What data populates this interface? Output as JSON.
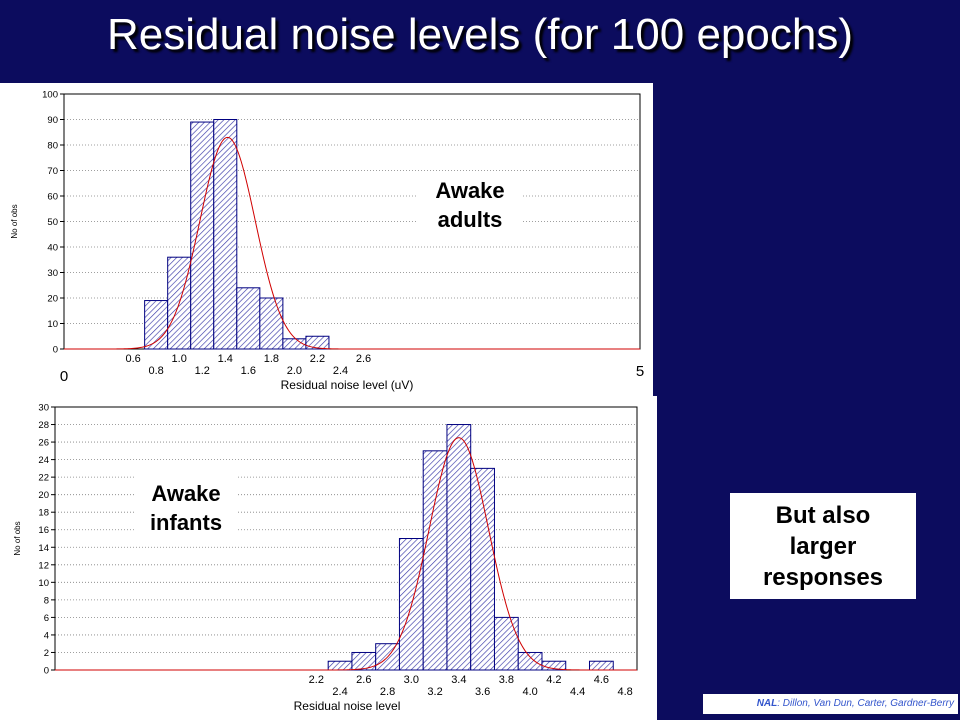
{
  "slide": {
    "title": "Residual noise levels (for 100 epochs)",
    "side_note": "But also larger responses",
    "credit_org": "NAL",
    "credit_authors": ": Dillon, Van Dun, Carter, Gardner-Berry"
  },
  "colors": {
    "background": "#0c0c5e",
    "bar_edge": "#000080",
    "bar_hatch": "#3a3aa8",
    "fit_curve": "#d00000"
  },
  "chart_data": [
    {
      "type": "bar",
      "annotation": "Awake adults",
      "xlabel": "Residual noise level (uV)",
      "ylabel": "No of obs",
      "xlim": [
        0.0,
        5.0
      ],
      "ylim": [
        0,
        100
      ],
      "yticks": [
        0,
        10,
        20,
        30,
        40,
        50,
        60,
        70,
        80,
        90,
        100
      ],
      "xticks_upper": [
        "0.6",
        "1.0",
        "1.4",
        "1.8",
        "2.2",
        "2.6"
      ],
      "xticks_lower": [
        "0.8",
        "1.2",
        "1.6",
        "2.0",
        "2.4"
      ],
      "range_labels": [
        "0",
        "5"
      ],
      "bin_width": 0.2,
      "bins": [
        0.8,
        1.0,
        1.2,
        1.4,
        1.6,
        1.8,
        2.0,
        2.2
      ],
      "values": [
        19,
        36,
        89,
        90,
        24,
        20,
        4,
        5
      ],
      "fit": {
        "kind": "normal",
        "mean": 1.42,
        "sd": 0.24,
        "peak": 83
      },
      "grid": true
    },
    {
      "type": "bar",
      "annotation": "Awake infants",
      "xlabel": "Residual noise level",
      "ylabel": "No of obs",
      "xlim": [
        0.0,
        4.9
      ],
      "ylim": [
        0,
        30
      ],
      "yticks": [
        0,
        2,
        4,
        6,
        8,
        10,
        12,
        14,
        16,
        18,
        20,
        22,
        24,
        26,
        28,
        30
      ],
      "xticks_upper": [
        "2.2",
        "2.6",
        "3.0",
        "3.4",
        "3.8",
        "4.2",
        "4.6"
      ],
      "xticks_lower": [
        "2.4",
        "2.8",
        "3.2",
        "3.6",
        "4.0",
        "4.4",
        "4.8"
      ],
      "bin_width": 0.2,
      "bins": [
        2.4,
        2.6,
        2.8,
        3.0,
        3.2,
        3.4,
        3.6,
        3.8,
        4.0,
        4.2,
        4.4,
        4.6
      ],
      "values": [
        1,
        2,
        3,
        15,
        25,
        28,
        23,
        6,
        2,
        1,
        0,
        1
      ],
      "fit": {
        "kind": "normal",
        "mean": 3.4,
        "sd": 0.25,
        "peak": 26.5
      },
      "grid": true
    }
  ]
}
